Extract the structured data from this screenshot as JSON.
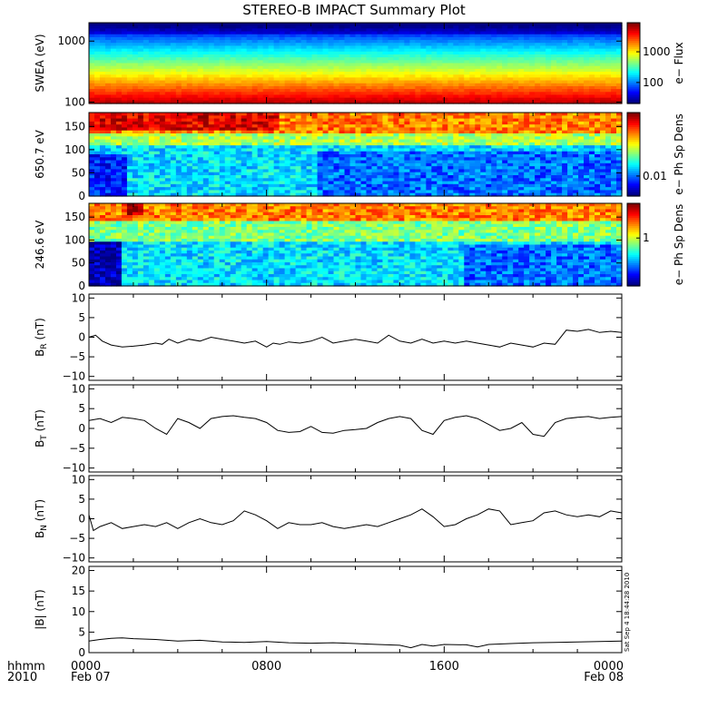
{
  "title": "STEREO-B IMPACT Summary Plot",
  "footer": {
    "row1_label": "hhmm",
    "row2_label": "2010",
    "ticks": [
      {
        "top": "0000",
        "bottom": "Feb 07",
        "hour": 0
      },
      {
        "top": "0800",
        "bottom": "",
        "hour": 8
      },
      {
        "top": "1600",
        "bottom": "",
        "hour": 16
      },
      {
        "top": "0000",
        "bottom": "Feb 08",
        "hour": 24
      }
    ]
  },
  "timestamp": "Sat Sep  4 18:44:28 2010",
  "colors": {
    "trace": "#000000"
  },
  "chart_data": [
    {
      "type": "heatmap",
      "ylabel": "SWEA (eV)",
      "yscale": "log",
      "ylim": [
        95,
        2000
      ],
      "yticks": [
        "100",
        "1000"
      ],
      "xlim": [
        0,
        24
      ],
      "colorbar": {
        "label": "e− Flux",
        "scale": "log",
        "ticks": [
          "100",
          "1000"
        ]
      }
    },
    {
      "type": "heatmap",
      "ylabel": "650.7 eV",
      "ylim": [
        0,
        180
      ],
      "yticks": [
        "0",
        "50",
        "100",
        "150"
      ],
      "xlim": [
        0,
        24
      ],
      "colorbar": {
        "label": "e− Ph Sp Dens",
        "scale": "log",
        "ticks": [
          "0.01"
        ]
      }
    },
    {
      "type": "heatmap",
      "ylabel": "246.6 eV",
      "ylim": [
        0,
        180
      ],
      "yticks": [
        "0",
        "50",
        "100",
        "150"
      ],
      "xlim": [
        0,
        24
      ],
      "colorbar": {
        "label": "e− Ph Sp Dens",
        "scale": "log",
        "ticks": [
          "1"
        ]
      }
    },
    {
      "type": "line",
      "ylabel": "B",
      "ylabel_sub": "R",
      "ylabel_unit": " (nT)",
      "ylim": [
        -11,
        11
      ],
      "yticks": [
        "−10",
        "−5",
        "0",
        "5",
        "10"
      ],
      "xlim": [
        0,
        24
      ],
      "x": [
        0,
        0.3,
        0.6,
        1,
        1.5,
        2,
        2.5,
        3,
        3.3,
        3.6,
        4,
        4.5,
        5,
        5.5,
        6,
        6.5,
        7,
        7.5,
        8,
        8.3,
        8.6,
        9,
        9.5,
        10,
        10.5,
        11,
        11.5,
        12,
        12.5,
        13,
        13.5,
        14,
        14.5,
        15,
        15.5,
        16,
        16.5,
        17,
        17.5,
        18,
        18.5,
        19,
        19.5,
        20,
        20.5,
        21,
        21.5,
        22,
        22.5,
        23,
        23.5,
        24
      ],
      "y": [
        0,
        0.5,
        -1,
        -2,
        -2.5,
        -2.3,
        -2,
        -1.5,
        -1.8,
        -0.5,
        -1.5,
        -0.5,
        -1,
        0,
        -0.5,
        -1,
        -1.5,
        -1,
        -2.5,
        -1.5,
        -1.8,
        -1.2,
        -1.5,
        -1,
        0,
        -1.5,
        -1,
        -0.5,
        -1,
        -1.5,
        0.5,
        -1,
        -1.5,
        -0.5,
        -1.5,
        -1,
        -1.5,
        -1,
        -1.5,
        -2,
        -2.5,
        -1.5,
        -2,
        -2.5,
        -1.5,
        -1.8,
        1.8,
        1.5,
        2,
        1.2,
        1.5,
        1.2
      ]
    },
    {
      "type": "line",
      "ylabel": "B",
      "ylabel_sub": "T",
      "ylabel_unit": " (nT)",
      "ylim": [
        -11,
        11
      ],
      "yticks": [
        "−10",
        "−5",
        "0",
        "5",
        "10"
      ],
      "xlim": [
        0,
        24
      ],
      "x": [
        0,
        0.5,
        1,
        1.5,
        2,
        2.5,
        3,
        3.5,
        4,
        4.5,
        5,
        5.5,
        6,
        6.5,
        7,
        7.5,
        8,
        8.5,
        9,
        9.5,
        10,
        10.5,
        11,
        11.5,
        12,
        12.5,
        13,
        13.5,
        14,
        14.5,
        15,
        15.5,
        16,
        16.5,
        17,
        17.5,
        18,
        18.5,
        19,
        19.5,
        20,
        20.5,
        21,
        21.5,
        22,
        22.5,
        23,
        23.5,
        24
      ],
      "y": [
        2,
        2.5,
        1.5,
        2.8,
        2.5,
        2,
        0,
        -1.5,
        2.5,
        1.5,
        0,
        2.5,
        3,
        3.2,
        2.8,
        2.5,
        1.5,
        -0.5,
        -1,
        -0.8,
        0.5,
        -1,
        -1.2,
        -0.5,
        -0.3,
        0,
        1.5,
        2.5,
        3,
        2.5,
        -0.5,
        -1.5,
        2,
        2.8,
        3.2,
        2.5,
        1,
        -0.5,
        0,
        1.5,
        -1.5,
        -2,
        1.5,
        2.5,
        2.8,
        3,
        2.5,
        2.8,
        3
      ]
    },
    {
      "type": "line",
      "ylabel": "B",
      "ylabel_sub": "N",
      "ylabel_unit": " (nT)",
      "ylim": [
        -11,
        11
      ],
      "yticks": [
        "−10",
        "−5",
        "0",
        "5",
        "10"
      ],
      "xlim": [
        0,
        24
      ],
      "x": [
        0,
        0.2,
        0.5,
        1,
        1.5,
        2,
        2.5,
        3,
        3.5,
        4,
        4.5,
        5,
        5.5,
        6,
        6.5,
        7,
        7.5,
        8,
        8.5,
        9,
        9.5,
        10,
        10.5,
        11,
        11.5,
        12,
        12.5,
        13,
        13.5,
        14,
        14.5,
        15,
        15.5,
        16,
        16.5,
        17,
        17.5,
        18,
        18.5,
        19,
        19.5,
        20,
        20.5,
        21,
        21.5,
        22,
        22.5,
        23,
        23.5,
        24
      ],
      "y": [
        1,
        -3,
        -2,
        -1,
        -2.5,
        -2,
        -1.5,
        -2,
        -1,
        -2.5,
        -1,
        0,
        -1,
        -1.5,
        -0.5,
        2,
        1,
        -0.5,
        -2.5,
        -1,
        -1.5,
        -1.5,
        -1,
        -2,
        -2.5,
        -2,
        -1.5,
        -2,
        -1,
        0,
        1,
        2.5,
        0.5,
        -2,
        -1.5,
        0,
        1,
        2.5,
        2,
        -1.5,
        -1,
        -0.5,
        1.5,
        2,
        1,
        0.5,
        1,
        0.5,
        2,
        1.5
      ]
    },
    {
      "type": "line",
      "ylabel": "|B|",
      "ylabel_sub": "",
      "ylabel_unit": " (nT)",
      "ylim": [
        0,
        21
      ],
      "yticks": [
        "0",
        "5",
        "10",
        "15",
        "20"
      ],
      "xlim": [
        0,
        24
      ],
      "x": [
        0,
        0.5,
        1,
        1.5,
        2,
        3,
        4,
        5,
        6,
        7,
        8,
        9,
        10,
        11,
        12,
        13,
        14,
        14.5,
        15,
        15.5,
        16,
        17,
        17.5,
        18,
        19,
        20,
        21,
        22,
        23,
        24
      ],
      "y": [
        2.8,
        3.2,
        3.5,
        3.6,
        3.4,
        3.2,
        2.8,
        3.0,
        2.6,
        2.5,
        2.7,
        2.4,
        2.3,
        2.4,
        2.2,
        2.0,
        1.8,
        1.2,
        2.0,
        1.6,
        2.0,
        1.9,
        1.4,
        2.0,
        2.2,
        2.4,
        2.5,
        2.6,
        2.7,
        2.8
      ]
    }
  ]
}
